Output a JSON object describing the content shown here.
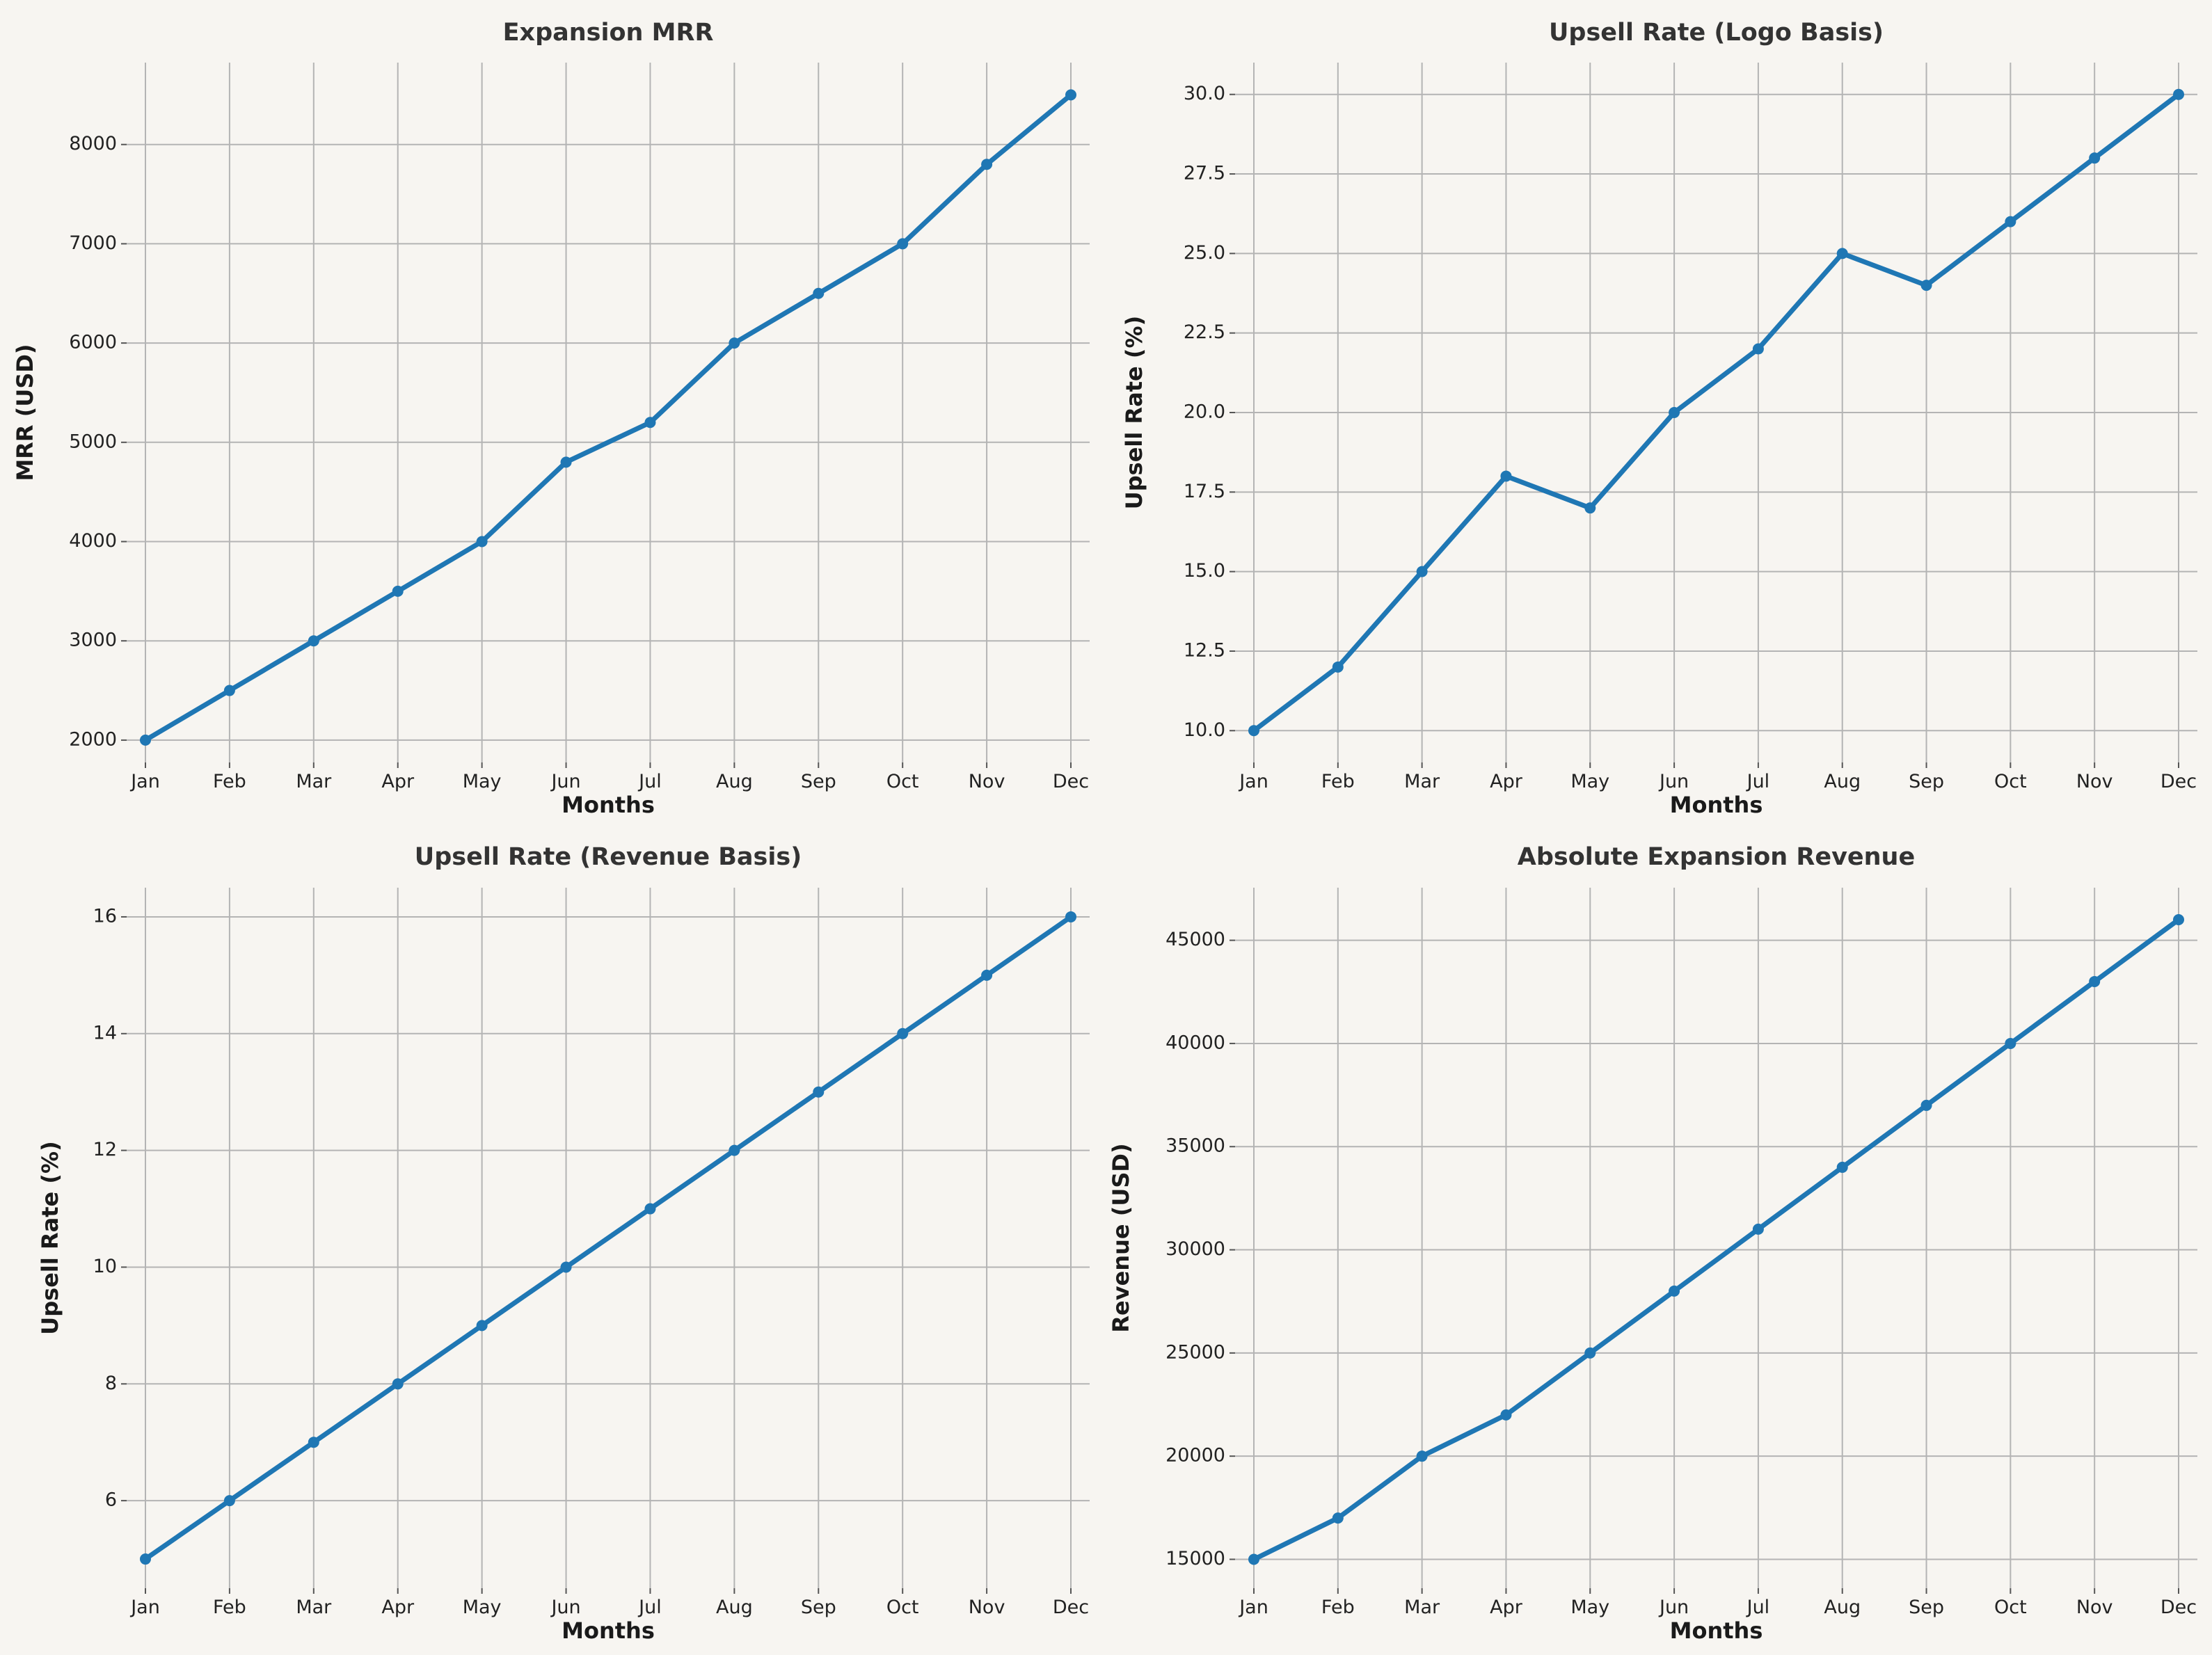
{
  "colors": {
    "background": "#f7f5f1",
    "series": "#1f77b4",
    "grid": "#b4b4b4"
  },
  "chart_data": [
    {
      "type": "line",
      "title": "Expansion MRR",
      "xlabel": "Months",
      "ylabel": "MRR (USD)",
      "categories": [
        "Jan",
        "Feb",
        "Mar",
        "Apr",
        "May",
        "Jun",
        "Jul",
        "Aug",
        "Sep",
        "Oct",
        "Nov",
        "Dec"
      ],
      "series": [
        {
          "values": [
            2000,
            2500,
            3000,
            3500,
            4000,
            4800,
            5200,
            6000,
            6500,
            7000,
            7800,
            8500
          ]
        }
      ],
      "ylim": [
        1775,
        8825
      ],
      "yticks": [
        2000,
        3000,
        4000,
        5000,
        6000,
        7000,
        8000
      ],
      "ytick_labels": [
        "2000",
        "3000",
        "4000",
        "5000",
        "6000",
        "7000",
        "8000"
      ],
      "grid": true,
      "markers": true
    },
    {
      "type": "line",
      "title": "Upsell Rate (Logo Basis)",
      "xlabel": "Months",
      "ylabel": "Upsell Rate (%)",
      "categories": [
        "Jan",
        "Feb",
        "Mar",
        "Apr",
        "May",
        "Jun",
        "Jul",
        "Aug",
        "Sep",
        "Oct",
        "Nov",
        "Dec"
      ],
      "series": [
        {
          "values": [
            10,
            12,
            15,
            18,
            17,
            20,
            22,
            25,
            24,
            26,
            28,
            30
          ]
        }
      ],
      "ylim": [
        9,
        31
      ],
      "yticks": [
        10,
        12.5,
        15,
        17.5,
        20,
        22.5,
        25,
        27.5,
        30
      ],
      "ytick_labels": [
        "10.0",
        "12.5",
        "15.0",
        "17.5",
        "20.0",
        "22.5",
        "25.0",
        "27.5",
        "30.0"
      ],
      "grid": true,
      "markers": true
    },
    {
      "type": "line",
      "title": "Upsell Rate (Revenue Basis)",
      "xlabel": "Months",
      "ylabel": "Upsell Rate (%)",
      "categories": [
        "Jan",
        "Feb",
        "Mar",
        "Apr",
        "May",
        "Jun",
        "Jul",
        "Aug",
        "Sep",
        "Oct",
        "Nov",
        "Dec"
      ],
      "series": [
        {
          "values": [
            5,
            6,
            7,
            8,
            9,
            10,
            11,
            12,
            13,
            14,
            15,
            16
          ]
        }
      ],
      "ylim": [
        4.5,
        16.5
      ],
      "yticks": [
        6,
        8,
        10,
        12,
        14,
        16
      ],
      "ytick_labels": [
        "6",
        "8",
        "10",
        "12",
        "14",
        "16"
      ],
      "grid": true,
      "markers": true
    },
    {
      "type": "line",
      "title": "Absolute Expansion Revenue",
      "xlabel": "Months",
      "ylabel": "Revenue (USD)",
      "categories": [
        "Jan",
        "Feb",
        "Mar",
        "Apr",
        "May",
        "Jun",
        "Jul",
        "Aug",
        "Sep",
        "Oct",
        "Nov",
        "Dec"
      ],
      "series": [
        {
          "values": [
            15000,
            17000,
            20000,
            22000,
            25000,
            28000,
            31000,
            34000,
            37000,
            40000,
            43000,
            46000
          ]
        }
      ],
      "ylim": [
        13600,
        47550
      ],
      "yticks": [
        15000,
        20000,
        25000,
        30000,
        35000,
        40000,
        45000
      ],
      "ytick_labels": [
        "15000",
        "20000",
        "25000",
        "30000",
        "35000",
        "40000",
        "45000"
      ],
      "grid": true,
      "markers": true
    }
  ]
}
